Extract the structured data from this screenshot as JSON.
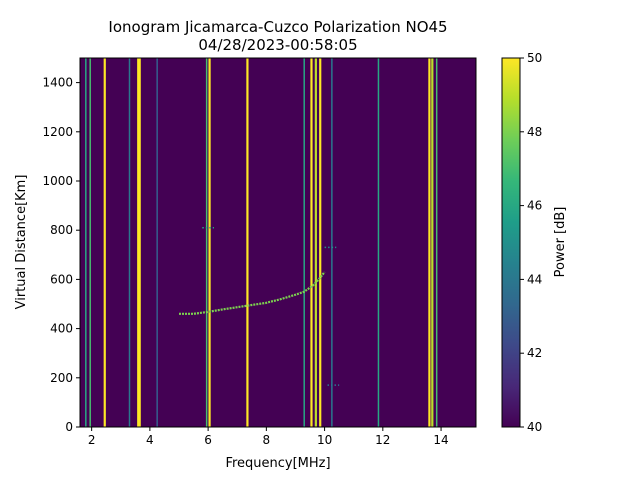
{
  "chart_data": {
    "type": "heatmap",
    "title_line1": "Ionogram Jicamarca-Cuzco Polarization NO45",
    "title_line2": "04/28/2023-00:58:05",
    "xlabel": "Frequency[MHz]",
    "ylabel": "Virtual Distance[Km]",
    "xlim": [
      1.6,
      15.2
    ],
    "ylim": [
      0,
      1500
    ],
    "xticks": [
      2,
      4,
      6,
      8,
      10,
      12,
      14
    ],
    "yticks": [
      0,
      200,
      400,
      600,
      800,
      1000,
      1200,
      1400
    ],
    "colorbar": {
      "label": "Power [dB]",
      "range": [
        40,
        50
      ],
      "ticks": [
        40,
        42,
        44,
        46,
        48,
        50
      ],
      "colormap": [
        "#440154",
        "#482878",
        "#3e4989",
        "#31688e",
        "#26828e",
        "#1f9e89",
        "#35b779",
        "#6ece58",
        "#b5de2b",
        "#fde725"
      ]
    },
    "background_value_db": 40,
    "interference_bands": [
      {
        "freq": 1.8,
        "power_db": 46
      },
      {
        "freq": 1.95,
        "power_db": 47
      },
      {
        "freq": 2.45,
        "power_db": 50
      },
      {
        "freq": 3.3,
        "power_db": 44
      },
      {
        "freq": 3.6,
        "power_db": 50
      },
      {
        "freq": 3.65,
        "power_db": 50
      },
      {
        "freq": 4.25,
        "power_db": 43
      },
      {
        "freq": 5.95,
        "power_db": 47
      },
      {
        "freq": 6.05,
        "power_db": 50
      },
      {
        "freq": 7.35,
        "power_db": 50
      },
      {
        "freq": 9.3,
        "power_db": 46
      },
      {
        "freq": 9.55,
        "power_db": 50
      },
      {
        "freq": 9.7,
        "power_db": 49
      },
      {
        "freq": 9.85,
        "power_db": 50
      },
      {
        "freq": 10.25,
        "power_db": 44
      },
      {
        "freq": 11.85,
        "power_db": 46
      },
      {
        "freq": 13.6,
        "power_db": 50
      },
      {
        "freq": 13.7,
        "power_db": 49
      },
      {
        "freq": 13.85,
        "power_db": 47
      }
    ],
    "echo_trace": {
      "power_db": 48,
      "points": [
        {
          "x": 5.0,
          "y": 460
        },
        {
          "x": 5.5,
          "y": 460
        },
        {
          "x": 6.0,
          "y": 468
        },
        {
          "x": 6.5,
          "y": 478
        },
        {
          "x": 7.0,
          "y": 487
        },
        {
          "x": 7.5,
          "y": 496
        },
        {
          "x": 8.0,
          "y": 505
        },
        {
          "x": 8.5,
          "y": 520
        },
        {
          "x": 9.0,
          "y": 538
        },
        {
          "x": 9.3,
          "y": 550
        },
        {
          "x": 9.6,
          "y": 575
        },
        {
          "x": 9.8,
          "y": 600
        },
        {
          "x": 10.0,
          "y": 630
        }
      ]
    },
    "extra_echoes": [
      {
        "x1": 5.8,
        "x2": 6.2,
        "y": 810,
        "power_db": 46
      },
      {
        "x1": 10.0,
        "x2": 10.4,
        "y": 730,
        "power_db": 45
      },
      {
        "x1": 10.1,
        "x2": 10.5,
        "y": 170,
        "power_db": 44
      }
    ]
  }
}
